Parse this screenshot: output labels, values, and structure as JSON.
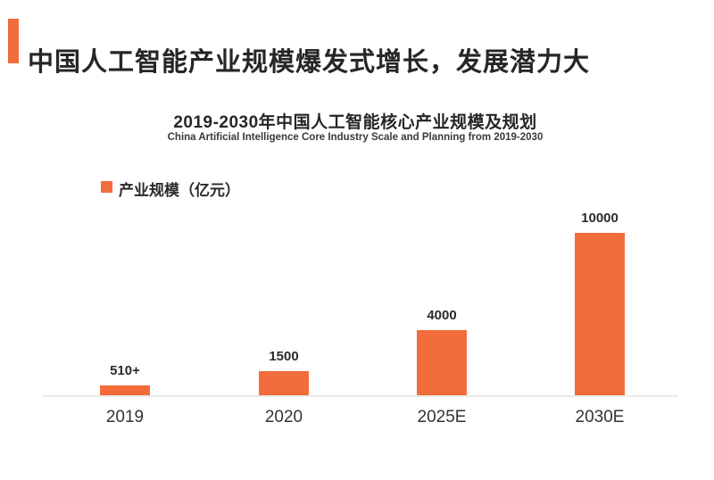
{
  "header": {
    "title": "中国人工智能产业规模爆发式增长，发展潜力大"
  },
  "chart_data": {
    "type": "bar",
    "title": "2019-2030年中国人工智能核心产业规模及规划",
    "subtitle": "China Artificial Intelligence Core Industry Scale and Planning from 2019-2030",
    "legend": [
      {
        "label": "产业规模（亿元）",
        "color": "#f26c3c"
      }
    ],
    "legend_position": "top-left",
    "categories": [
      "2019",
      "2020",
      "2025E",
      "2030E"
    ],
    "values": [
      510,
      1500,
      4000,
      10000
    ],
    "value_labels": [
      "510+",
      "1500",
      "4000",
      "10000"
    ],
    "ylabel": "产业规模（亿元）",
    "ylim": [
      0,
      10000
    ],
    "grid": false,
    "bar_color": "#f26c3c"
  },
  "colors": {
    "accent": "#f26c3c",
    "text_dark": "#2b2b2b",
    "axis_line": "#e9e9e9"
  }
}
